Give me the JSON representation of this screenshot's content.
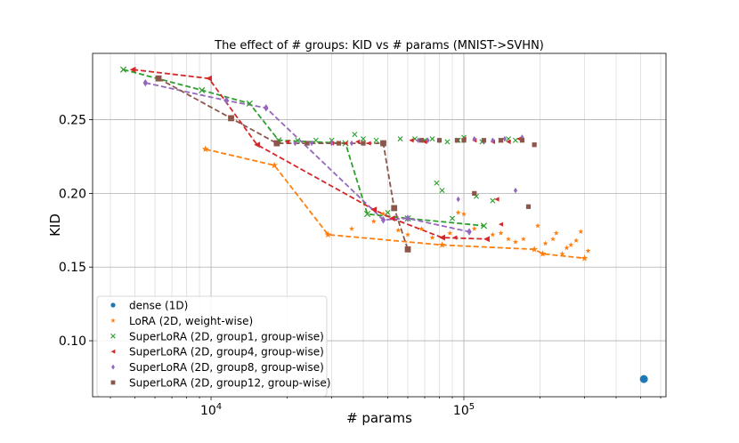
{
  "chart_data": {
    "type": "scatter",
    "title": "The effect of # groups: KID vs # params (MNIST->SVHN)",
    "xlabel": "# params",
    "ylabel": "KID",
    "xscale": "log",
    "xlim": [
      3400,
      630000
    ],
    "ylim": [
      0.062,
      0.295
    ],
    "grid": true,
    "xticks": [
      {
        "value": 10000,
        "base": "10",
        "exp": "4"
      },
      {
        "value": 100000,
        "base": "10",
        "exp": "5"
      }
    ],
    "yticks": [
      {
        "value": 0.1,
        "label": "0.10"
      },
      {
        "value": 0.15,
        "label": "0.15"
      },
      {
        "value": 0.2,
        "label": "0.20"
      },
      {
        "value": 0.25,
        "label": "0.25"
      }
    ],
    "legend_position": "lower-left",
    "series": [
      {
        "name": "dense (1D)",
        "key": "dense",
        "color": "#1f77b4",
        "marker": "circle",
        "points": [
          [
            515000,
            0.074
          ]
        ],
        "frontier": []
      },
      {
        "name": "LoRA (2D, weight-wise)",
        "key": "lora",
        "color": "#ff7f0e",
        "marker": "star",
        "points": [
          [
            9500,
            0.23
          ],
          [
            17800,
            0.219
          ],
          [
            29000,
            0.172
          ],
          [
            36000,
            0.176
          ],
          [
            44000,
            0.181
          ],
          [
            48000,
            0.186
          ],
          [
            55000,
            0.175
          ],
          [
            60000,
            0.172
          ],
          [
            68000,
            0.176
          ],
          [
            75000,
            0.17
          ],
          [
            82000,
            0.165
          ],
          [
            88000,
            0.173
          ],
          [
            95000,
            0.187
          ],
          [
            100000,
            0.186
          ],
          [
            110000,
            0.176
          ],
          [
            130000,
            0.172
          ],
          [
            140000,
            0.173
          ],
          [
            150000,
            0.169
          ],
          [
            160000,
            0.167
          ],
          [
            172000,
            0.169
          ],
          [
            190000,
            0.162
          ],
          [
            196000,
            0.178
          ],
          [
            205000,
            0.159
          ],
          [
            210000,
            0.166
          ],
          [
            225000,
            0.169
          ],
          [
            232000,
            0.173
          ],
          [
            245000,
            0.159
          ],
          [
            255000,
            0.163
          ],
          [
            265000,
            0.165
          ],
          [
            278000,
            0.168
          ],
          [
            290000,
            0.174
          ],
          [
            300000,
            0.156
          ],
          [
            310000,
            0.161
          ]
        ],
        "frontier": [
          [
            9500,
            0.23
          ],
          [
            17800,
            0.219
          ],
          [
            29000,
            0.172
          ],
          [
            82000,
            0.165
          ],
          [
            190000,
            0.162
          ],
          [
            205000,
            0.159
          ],
          [
            300000,
            0.156
          ]
        ]
      },
      {
        "name": "SuperLoRA (2D, group1, group-wise)",
        "key": "g1",
        "color": "#2ca02c",
        "marker": "x",
        "points": [
          [
            4500,
            0.284
          ],
          [
            9200,
            0.27
          ],
          [
            14200,
            0.261
          ],
          [
            18500,
            0.236
          ],
          [
            22000,
            0.236
          ],
          [
            26000,
            0.236
          ],
          [
            30000,
            0.236
          ],
          [
            34000,
            0.234
          ],
          [
            37000,
            0.24
          ],
          [
            40000,
            0.237
          ],
          [
            41500,
            0.186
          ],
          [
            45000,
            0.236
          ],
          [
            50000,
            0.187
          ],
          [
            56000,
            0.237
          ],
          [
            60000,
            0.183
          ],
          [
            64000,
            0.237
          ],
          [
            70000,
            0.236
          ],
          [
            75000,
            0.237
          ],
          [
            78000,
            0.207
          ],
          [
            82000,
            0.202
          ],
          [
            86000,
            0.235
          ],
          [
            90000,
            0.183
          ],
          [
            95000,
            0.236
          ],
          [
            100000,
            0.238
          ],
          [
            112000,
            0.198
          ],
          [
            118000,
            0.235
          ],
          [
            120000,
            0.178
          ],
          [
            130000,
            0.195
          ],
          [
            140000,
            0.236
          ],
          [
            150000,
            0.237
          ],
          [
            160000,
            0.236
          ]
        ],
        "frontier": [
          [
            4500,
            0.284
          ],
          [
            9200,
            0.27
          ],
          [
            14200,
            0.261
          ],
          [
            18500,
            0.236
          ],
          [
            34000,
            0.234
          ],
          [
            41500,
            0.186
          ],
          [
            60000,
            0.183
          ],
          [
            120000,
            0.178
          ]
        ]
      },
      {
        "name": "SuperLoRA (2D, group4, group-wise)",
        "key": "g4",
        "color": "#d62728",
        "marker": "triangle-left",
        "points": [
          [
            4900,
            0.284
          ],
          [
            9800,
            0.278
          ],
          [
            15200,
            0.233
          ],
          [
            20000,
            0.235
          ],
          [
            24000,
            0.234
          ],
          [
            30000,
            0.234
          ],
          [
            34000,
            0.234
          ],
          [
            38000,
            0.235
          ],
          [
            42000,
            0.234
          ],
          [
            44000,
            0.189
          ],
          [
            52000,
            0.183
          ],
          [
            62000,
            0.236
          ],
          [
            70000,
            0.235
          ],
          [
            82000,
            0.17
          ],
          [
            92000,
            0.17
          ],
          [
            100000,
            0.237
          ],
          [
            110000,
            0.236
          ],
          [
            123000,
            0.169
          ],
          [
            130000,
            0.235
          ],
          [
            135000,
            0.196
          ],
          [
            140000,
            0.179
          ],
          [
            150000,
            0.235
          ],
          [
            165000,
            0.237
          ]
        ],
        "frontier": [
          [
            4900,
            0.284
          ],
          [
            9800,
            0.278
          ],
          [
            15200,
            0.233
          ],
          [
            44000,
            0.189
          ],
          [
            52000,
            0.183
          ],
          [
            82000,
            0.17
          ],
          [
            123000,
            0.169
          ]
        ]
      },
      {
        "name": "SuperLoRA (2D, group8, group-wise)",
        "key": "g8",
        "color": "#9467bd",
        "marker": "diamond",
        "points": [
          [
            5500,
            0.275
          ],
          [
            11500,
            0.263
          ],
          [
            16500,
            0.258
          ],
          [
            21500,
            0.234
          ],
          [
            25000,
            0.234
          ],
          [
            30000,
            0.234
          ],
          [
            36000,
            0.234
          ],
          [
            48000,
            0.182
          ],
          [
            60000,
            0.183
          ],
          [
            66000,
            0.236
          ],
          [
            72000,
            0.236
          ],
          [
            80000,
            0.236
          ],
          [
            95000,
            0.196
          ],
          [
            100000,
            0.236
          ],
          [
            105000,
            0.174
          ],
          [
            110000,
            0.237
          ],
          [
            120000,
            0.235
          ],
          [
            130000,
            0.236
          ],
          [
            145000,
            0.237
          ],
          [
            160000,
            0.202
          ],
          [
            170000,
            0.238
          ]
        ],
        "frontier": [
          [
            5500,
            0.275
          ],
          [
            11500,
            0.263
          ],
          [
            16500,
            0.258
          ],
          [
            48000,
            0.182
          ],
          [
            60000,
            0.183
          ],
          [
            105000,
            0.174
          ]
        ]
      },
      {
        "name": "SuperLoRA (2D, group12, group-wise)",
        "key": "g12",
        "color": "#8c564b",
        "marker": "square",
        "points": [
          [
            6200,
            0.278
          ],
          [
            12000,
            0.251
          ],
          [
            18200,
            0.234
          ],
          [
            24000,
            0.234
          ],
          [
            32000,
            0.234
          ],
          [
            40000,
            0.234
          ],
          [
            48000,
            0.234
          ],
          [
            53000,
            0.19
          ],
          [
            60000,
            0.162
          ],
          [
            68000,
            0.236
          ],
          [
            80000,
            0.236
          ],
          [
            94000,
            0.236
          ],
          [
            100000,
            0.236
          ],
          [
            110000,
            0.2
          ],
          [
            120000,
            0.236
          ],
          [
            140000,
            0.236
          ],
          [
            170000,
            0.236
          ],
          [
            180000,
            0.191
          ],
          [
            190000,
            0.233
          ]
        ],
        "frontier": [
          [
            6200,
            0.278
          ],
          [
            12000,
            0.251
          ],
          [
            18200,
            0.234
          ],
          [
            48000,
            0.234
          ],
          [
            53000,
            0.19
          ],
          [
            60000,
            0.162
          ]
        ]
      }
    ]
  }
}
